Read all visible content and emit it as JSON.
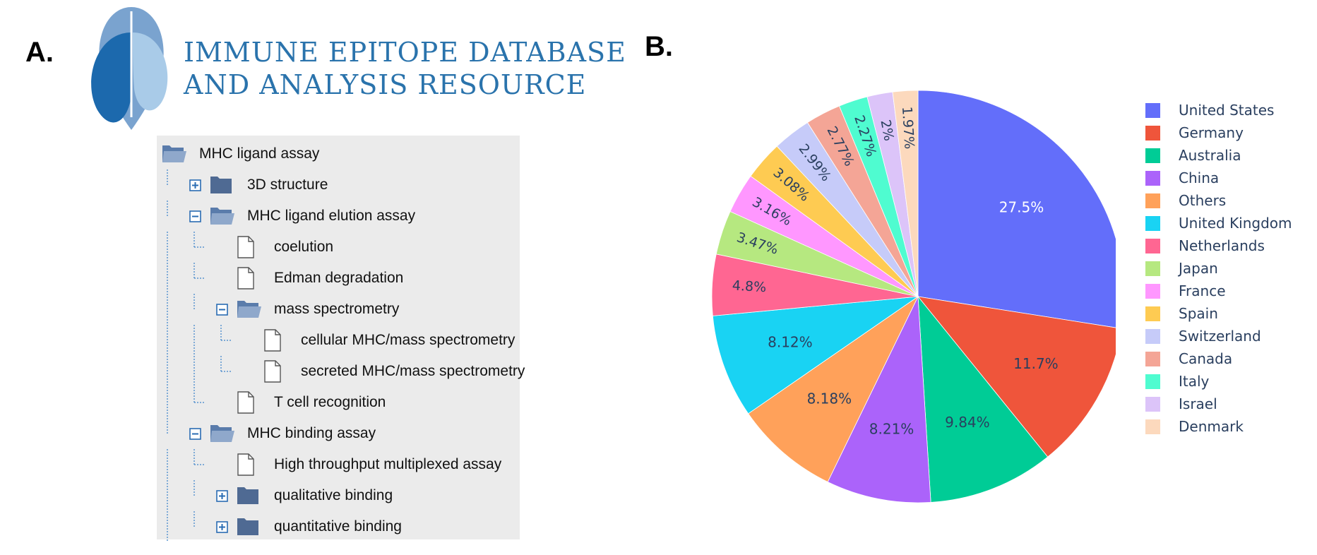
{
  "panels": {
    "a_label": "A.",
    "b_label": "B."
  },
  "logo": {
    "line1": "IMMUNE EPITOPE DATABASE",
    "line2": "AND ANALYSIS RESOURCE",
    "color": "#2a73ac"
  },
  "tree": {
    "items": [
      {
        "label": "MHC ligand assay",
        "depth": 0,
        "expander": "none",
        "icon": "folder-open-icon"
      },
      {
        "label": "3D structure",
        "depth": 1,
        "expander": "plus",
        "icon": "folder-closed-icon"
      },
      {
        "label": "MHC ligand elution assay",
        "depth": 1,
        "expander": "minus",
        "icon": "folder-open-icon"
      },
      {
        "label": "coelution",
        "depth": 2,
        "expander": "none",
        "icon": "document-icon"
      },
      {
        "label": "Edman degradation",
        "depth": 2,
        "expander": "none",
        "icon": "document-icon"
      },
      {
        "label": "mass spectrometry",
        "depth": 2,
        "expander": "minus",
        "icon": "folder-open-icon"
      },
      {
        "label": "cellular MHC/mass spectrometry",
        "depth": 3,
        "expander": "none",
        "icon": "document-icon"
      },
      {
        "label": "secreted MHC/mass spectrometry",
        "depth": 3,
        "expander": "none",
        "icon": "document-icon"
      },
      {
        "label": "T cell recognition",
        "depth": 2,
        "expander": "none",
        "icon": "document-icon"
      },
      {
        "label": "MHC binding assay",
        "depth": 1,
        "expander": "minus",
        "icon": "folder-open-icon"
      },
      {
        "label": "High throughput multiplexed assay",
        "depth": 2,
        "expander": "none",
        "icon": "document-icon"
      },
      {
        "label": "qualitative binding",
        "depth": 2,
        "expander": "plus",
        "icon": "folder-closed-icon"
      },
      {
        "label": "quantitative binding",
        "depth": 2,
        "expander": "plus",
        "icon": "folder-closed-icon"
      }
    ]
  },
  "chart_data": {
    "type": "pie",
    "legend_position": "right",
    "categories": [
      "United States",
      "Germany",
      "Australia",
      "China",
      "Others",
      "United Kingdom",
      "Netherlands",
      "Japan",
      "France",
      "Spain",
      "Switzerland",
      "Canada",
      "Italy",
      "Israel",
      "Denmark"
    ],
    "values": [
      27.5,
      11.7,
      9.84,
      8.21,
      8.18,
      8.12,
      4.8,
      3.47,
      3.16,
      3.08,
      2.99,
      2.77,
      2.27,
      2.0,
      1.97
    ],
    "labels": [
      "27.5%",
      "11.7%",
      "9.84%",
      "8.21%",
      "8.18%",
      "8.12%",
      "4.8%",
      "3.47%",
      "3.16%",
      "3.08%",
      "2.99%",
      "2.77%",
      "2.27%",
      "2%",
      "1.97%"
    ],
    "colors": [
      "#636efa",
      "#ef553b",
      "#00cc96",
      "#ab63fa",
      "#ffa15a",
      "#19d3f3",
      "#ff6692",
      "#b6e880",
      "#ff97ff",
      "#fecb52",
      "#c6cbf9",
      "#f4a596",
      "#4ffcd0",
      "#dcc4f9",
      "#fcd9bd"
    ],
    "slice_order": [
      "United States",
      "Germany",
      "Australia",
      "China",
      "Others",
      "United Kingdom",
      "Netherlands",
      "Japan",
      "France",
      "Spain",
      "Switzerland",
      "Canada",
      "Italy",
      "Israel",
      "Denmark"
    ],
    "direction": "counterclockwise",
    "start": "top"
  }
}
